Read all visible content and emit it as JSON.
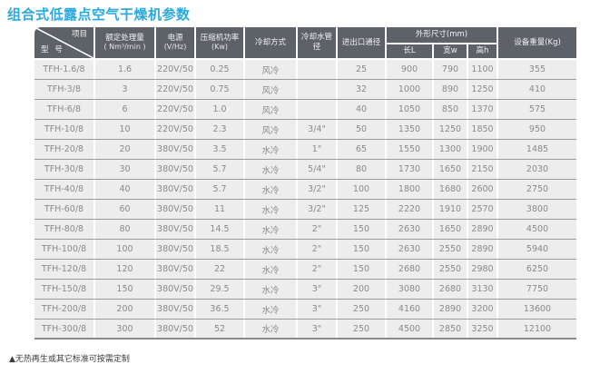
{
  "title": "组合式低露点空气干燥机参数",
  "footnote": "▲无热再生或其它标准可按需定制",
  "colors": {
    "title_accent": "#29a9e1",
    "header_bg": "#5d6268",
    "header_text": "#f2f2f2",
    "row_bg": "#ededed",
    "row_divider": "#9b9b9b",
    "cell_text": "#8a8a8a"
  },
  "table": {
    "corner": {
      "top_label": "项目",
      "bottom_label": "型 号"
    },
    "headers": {
      "capacity": {
        "line1": "额定处理量",
        "line2": "( Nm³/min )"
      },
      "power_supply": {
        "line1": "电源",
        "line2": "(V/Hz)"
      },
      "compressor_power": {
        "line1": "压缩机功率",
        "line2": "(Kw)"
      },
      "cooling_method": "冷却方式",
      "cooling_pipe": "冷却水管径",
      "port_diameter": "进出口通径",
      "dimensions_group": "外形尺寸(mm)",
      "dim_length": "长L",
      "dim_width": "宽w",
      "dim_height": "高h",
      "weight": "设备重量(Kg)"
    },
    "rows": [
      [
        "TFH-1.6/8",
        "1.6",
        "220V/50",
        "0.25",
        "风冷",
        "",
        "25",
        "900",
        "790",
        "1100",
        "355"
      ],
      [
        "TFH-3/8",
        "3",
        "220V/50",
        "0.75",
        "风冷",
        "",
        "32",
        "1000",
        "890",
        "1250",
        "410"
      ],
      [
        "TFH-6/8",
        "6",
        "220V/50",
        "1.0",
        "风冷",
        "",
        "40",
        "1050",
        "850",
        "1370",
        "575"
      ],
      [
        "TFH-10/8",
        "10",
        "220V/50",
        "2.3",
        "风冷",
        "3/4\"",
        "50",
        "1350",
        "1250",
        "1850",
        "950"
      ],
      [
        "TFH-20/8",
        "20",
        "380V/50",
        "3.5",
        "水冷",
        "1\"",
        "65",
        "1550",
        "1300",
        "1900",
        "1485"
      ],
      [
        "TFH-30/8",
        "30",
        "380V/50",
        "5.7",
        "水冷",
        "5/4\"",
        "80",
        "1730",
        "1650",
        "2150",
        "2030"
      ],
      [
        "TFH-40/8",
        "40",
        "380V/50",
        "5.7",
        "水冷",
        "3/2\"",
        "100",
        "1800",
        "1680",
        "2600",
        "2750"
      ],
      [
        "TFH-60/8",
        "60",
        "380V/50",
        "11",
        "水冷",
        "3/2\"",
        "125",
        "2220",
        "1910",
        "2570",
        "3800"
      ],
      [
        "TFH-80/8",
        "80",
        "380V/50",
        "14.5",
        "水冷",
        "2\"",
        "150",
        "2630",
        "1650",
        "2890",
        "4500"
      ],
      [
        "TFH-100/8",
        "100",
        "380V/50",
        "18.5",
        "水冷",
        "2\"",
        "150",
        "2630",
        "2550",
        "2890",
        "5940"
      ],
      [
        "TFH-120/8",
        "120",
        "380V/50",
        "22",
        "水冷",
        "2\"",
        "150",
        "2680",
        "2550",
        "2980",
        "6250"
      ],
      [
        "TFH-150/8",
        "150",
        "380V/50",
        "29.5",
        "水冷",
        "3\"",
        "200",
        "3080",
        "2680",
        "3130",
        "7750"
      ],
      [
        "TFH-200/8",
        "200",
        "380V/50",
        "36.5",
        "水冷",
        "3\"",
        "250",
        "4160",
        "2890",
        "3200",
        "13600"
      ],
      [
        "TFH-300/8",
        "300",
        "380V/50",
        "52",
        "水冷",
        "3\"",
        "250",
        "4500",
        "2850",
        "3250",
        "12100"
      ]
    ]
  }
}
